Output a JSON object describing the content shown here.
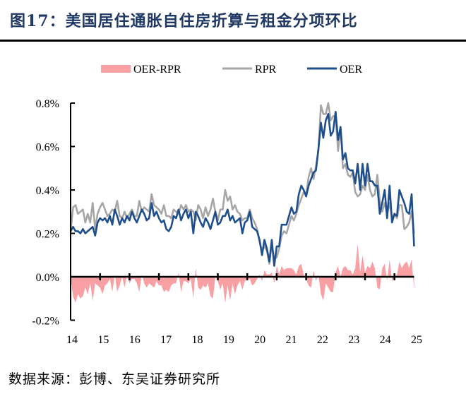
{
  "title": "图17：美国居住通胀自住房折算与租金分项环比",
  "source": "数据来源：彭博、东吴证券研究所",
  "chart_data": {
    "type": "line",
    "title": "图17：美国居住通胀自住房折算与租金分项环比",
    "xlabel": "",
    "ylabel": "",
    "frequency": "monthly",
    "x_start": "2014-01",
    "x_tick_labels": [
      "14",
      "15",
      "16",
      "17",
      "18",
      "19",
      "20",
      "21",
      "22",
      "23",
      "24",
      "25"
    ],
    "y_tick_labels": [
      "0.8%",
      "0.6%",
      "0.4%",
      "0.2%",
      "0.0%",
      "-0.2%"
    ],
    "y_ticks": [
      0.8,
      0.6,
      0.4,
      0.2,
      0.0,
      -0.2
    ],
    "ylim": [
      -0.2,
      0.8
    ],
    "unit": "%",
    "grid": false,
    "legend_position": "top-center",
    "colors": {
      "OER-RPR": "#f8a0a4",
      "RPR": "#a6a6a6",
      "OER": "#1f4e8c"
    },
    "series": [
      {
        "name": "OER-RPR",
        "type": "area",
        "values": [
          0,
          -0.09,
          -0.12,
          -0.08,
          -0.1,
          -0.09,
          -0.05,
          -0.08,
          -0.03,
          -0.11,
          -0.03,
          -0.04,
          -0.05,
          -0.08,
          -0.04,
          -0.03,
          -0.01,
          -0.07,
          0.01,
          -0.07,
          -0.04,
          0,
          -0.05,
          0.01,
          -0.03,
          -0.01,
          -0.01,
          -0.03,
          -0.07,
          0.01,
          -0.03,
          -0.05,
          -0.03,
          -0.04,
          -0.05,
          -0.02,
          -0.04,
          -0.04,
          -0.07,
          -0.06,
          -0.07,
          -0.04,
          -0.03,
          -0.03,
          0.02,
          -0.07,
          -0.02,
          -0.02,
          -0.03,
          -0.01,
          -0.1,
          0.04,
          -0.05,
          -0.06,
          -0.04,
          -0.05,
          -0.03,
          -0.09,
          -0.1,
          0,
          -0.02,
          -0.06,
          -0.03,
          -0.12,
          -0.04,
          -0.11,
          -0.03,
          -0.08,
          -0.04,
          -0.02,
          -0.06,
          -0.02,
          -0.01,
          -0.01,
          -0.04,
          -0.03,
          -0.01,
          0.01,
          -0.02,
          0.03,
          0.01,
          0.01,
          0.02,
          -0.03,
          0.05,
          0.01,
          0.05,
          0.03,
          0.04,
          0.04,
          0.04,
          0.03,
          0.01,
          0.05,
          0.06,
          0.01,
          -0.01,
          -0.04,
          -0.05,
          0.03,
          -0.02,
          0.01,
          -0.08,
          -0.11,
          -0.03,
          -0.05,
          -0.07,
          -0.07,
          0.02,
          0.05,
          0,
          0.04,
          0.05,
          0.03,
          0.03,
          0.01,
          0.04,
          0.15,
          0.02,
          0.1,
          0.02,
          0.05,
          0.04,
          0.07,
          0.04,
          -0.05,
          -0.06,
          0.04,
          0.06,
          -0.02,
          0.08,
          -0.02,
          0,
          0.01,
          0.07,
          0.04,
          0.06,
          0.07,
          0.04,
          0.08,
          -0.06
        ]
      },
      {
        "name": "RPR",
        "type": "line",
        "values": [
          0.21,
          0.32,
          0.33,
          0.29,
          0.3,
          0.31,
          0.25,
          0.29,
          0.25,
          0.34,
          0.22,
          0.29,
          0.32,
          0.34,
          0.31,
          0.28,
          0.29,
          0.31,
          0.3,
          0.35,
          0.28,
          0.27,
          0.3,
          0.27,
          0.29,
          0.31,
          0.28,
          0.28,
          0.35,
          0.3,
          0.32,
          0.31,
          0.3,
          0.38,
          0.33,
          0.32,
          0.31,
          0.29,
          0.33,
          0.28,
          0.28,
          0.27,
          0.31,
          0.3,
          0.29,
          0.33,
          0.31,
          0.33,
          0.3,
          0.31,
          0.3,
          0.26,
          0.33,
          0.31,
          0.27,
          0.32,
          0.28,
          0.31,
          0.36,
          0.3,
          0.26,
          0.31,
          0.31,
          0.4,
          0.35,
          0.37,
          0.31,
          0.33,
          0.3,
          0.29,
          0.26,
          0.27,
          0.27,
          0.31,
          0.27,
          0.25,
          0.22,
          0.16,
          0.12,
          0.14,
          0.12,
          0.06,
          0.15,
          0.08,
          0.09,
          0.13,
          0.19,
          0.21,
          0.2,
          0.24,
          0.28,
          0.26,
          0.29,
          0.33,
          0.36,
          0.39,
          0.38,
          0.46,
          0.5,
          0.45,
          0.51,
          0.58,
          0.79,
          0.75,
          0.75,
          0.8,
          0.72,
          0.74,
          0.74,
          0.58,
          0.69,
          0.5,
          0.52,
          0.47,
          0.46,
          0.48,
          0.39,
          0.37,
          0.38,
          0.42,
          0.4,
          0.47,
          0.4,
          0.37,
          0.38,
          0.47,
          0.35,
          0.3,
          0.34,
          0.29,
          0.34,
          0.27,
          0.29,
          0.27,
          0.33,
          0.33,
          0.22,
          0.23,
          0.25,
          0.3,
          0.2
        ]
      },
      {
        "name": "OER",
        "type": "line",
        "values": [
          0.21,
          0.23,
          0.21,
          0.21,
          0.2,
          0.22,
          0.2,
          0.21,
          0.22,
          0.23,
          0.19,
          0.25,
          0.27,
          0.26,
          0.27,
          0.25,
          0.28,
          0.24,
          0.31,
          0.28,
          0.24,
          0.27,
          0.25,
          0.28,
          0.26,
          0.3,
          0.27,
          0.25,
          0.28,
          0.31,
          0.29,
          0.26,
          0.27,
          0.34,
          0.28,
          0.3,
          0.27,
          0.25,
          0.26,
          0.22,
          0.21,
          0.23,
          0.28,
          0.27,
          0.31,
          0.26,
          0.29,
          0.31,
          0.27,
          0.3,
          0.2,
          0.3,
          0.28,
          0.25,
          0.23,
          0.27,
          0.25,
          0.22,
          0.26,
          0.3,
          0.24,
          0.25,
          0.28,
          0.28,
          0.31,
          0.26,
          0.28,
          0.25,
          0.26,
          0.27,
          0.2,
          0.25,
          0.26,
          0.3,
          0.23,
          0.22,
          0.21,
          0.17,
          0.1,
          0.17,
          0.13,
          0.07,
          0.17,
          0.05,
          0.14,
          0.14,
          0.24,
          0.24,
          0.24,
          0.28,
          0.32,
          0.29,
          0.3,
          0.38,
          0.42,
          0.4,
          0.37,
          0.42,
          0.45,
          0.48,
          0.49,
          0.59,
          0.71,
          0.64,
          0.72,
          0.75,
          0.65,
          0.67,
          0.76,
          0.63,
          0.69,
          0.54,
          0.57,
          0.5,
          0.49,
          0.49,
          0.43,
          0.52,
          0.4,
          0.52,
          0.42,
          0.52,
          0.44,
          0.44,
          0.42,
          0.42,
          0.29,
          0.34,
          0.4,
          0.27,
          0.42,
          0.25,
          0.29,
          0.28,
          0.4,
          0.37,
          0.34,
          0.3,
          0.29,
          0.38,
          0.14
        ]
      }
    ]
  }
}
